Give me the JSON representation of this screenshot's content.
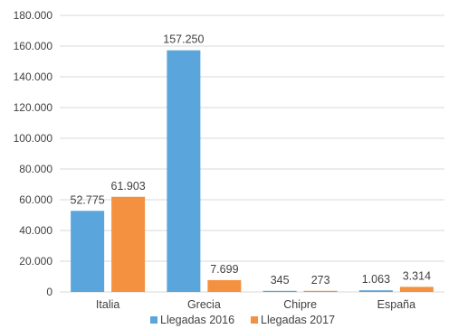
{
  "chart_data": {
    "type": "bar",
    "categories": [
      "Italia",
      "Grecia",
      "Chipre",
      "España"
    ],
    "series": [
      {
        "name": "Llegadas 2016",
        "values": [
          52775,
          157250,
          345,
          1063
        ],
        "labels": [
          "52.775",
          "157.250",
          "345",
          "1.063"
        ],
        "color": "#5aa5db"
      },
      {
        "name": "Llegadas 2017",
        "values": [
          61903,
          7699,
          273,
          3314
        ],
        "labels": [
          "61.903",
          "7.699",
          "273",
          "3.314"
        ],
        "color": "#f39141"
      }
    ],
    "ylim": [
      0,
      180000
    ],
    "yticks": [
      0,
      20000,
      40000,
      60000,
      80000,
      100000,
      120000,
      140000,
      160000,
      180000
    ],
    "ytick_labels": [
      "0",
      "20.000",
      "40.000",
      "60.000",
      "80.000",
      "100.000",
      "120.000",
      "140.000",
      "160.000",
      "180.000"
    ],
    "grid": true,
    "legend_position": "bottom",
    "gridline_color": "#d9d9d9"
  }
}
